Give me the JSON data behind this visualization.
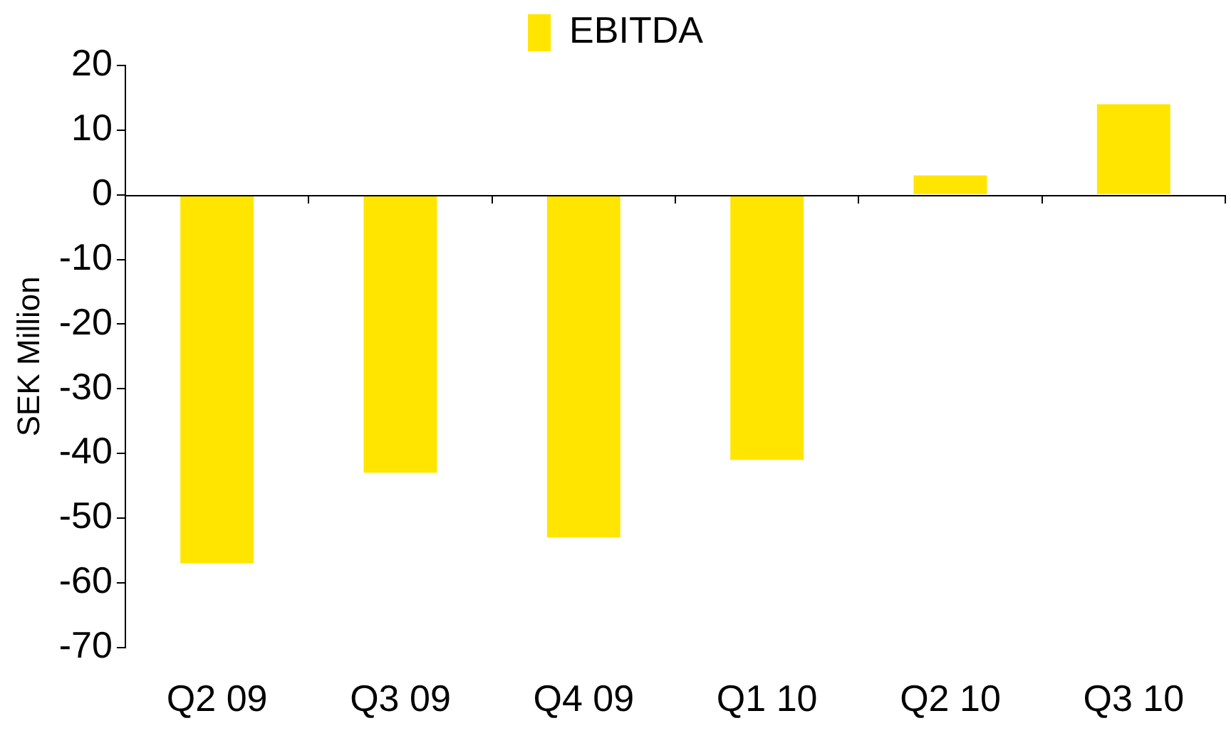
{
  "chart_data": {
    "type": "bar",
    "ylabel": "SEK Million",
    "categories": [
      "Q2 09",
      "Q3 09",
      "Q4 09",
      "Q1 10",
      "Q2 10",
      "Q3 10"
    ],
    "series": [
      {
        "name": "EBITDA",
        "color": "#ffe500",
        "values": [
          -57,
          -43,
          -53,
          -41,
          3,
          14
        ]
      }
    ],
    "ref_lines": [
      {
        "axis": "y",
        "value": 0,
        "color": "#000000"
      }
    ],
    "ylim": [
      -70,
      20
    ],
    "yticks": [
      -70,
      -60,
      -50,
      -40,
      -30,
      -20,
      -10,
      0,
      10,
      20
    ],
    "grid": false,
    "legend": "top"
  }
}
